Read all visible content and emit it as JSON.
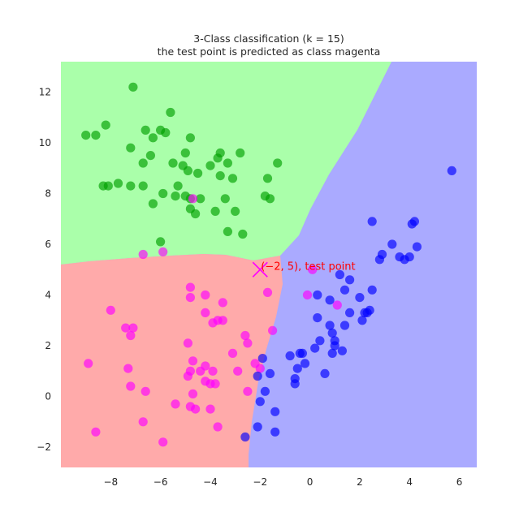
{
  "chart_data": {
    "type": "scatter",
    "title": "3-Class classification (k = 15)",
    "subtitle": "the test point is predicted as class magenta",
    "xlim": [
      -10.0,
      6.7
    ],
    "ylim": [
      -2.8,
      13.2
    ],
    "xticks": [
      -8,
      -6,
      -4,
      -2,
      0,
      2,
      4,
      6
    ],
    "yticks": [
      -2,
      0,
      2,
      4,
      6,
      8,
      10,
      12
    ],
    "xtick_labels": [
      "−8",
      "−6",
      "−4",
      "−2",
      "0",
      "2",
      "4",
      "6"
    ],
    "ytick_labels": [
      "−2",
      "0",
      "2",
      "4",
      "6",
      "8",
      "10",
      "12"
    ],
    "grid": false,
    "background_regions": [
      {
        "class": "green",
        "color": "#aaffaa"
      },
      {
        "class": "red",
        "color": "#ffaaaa"
      },
      {
        "class": "blue",
        "color": "#aaaaff"
      }
    ],
    "series": [
      {
        "color": "#00a000",
        "points": [
          [
            -7.1,
            12.2
          ],
          [
            -5.6,
            11.2
          ],
          [
            -8.2,
            10.7
          ],
          [
            -9.0,
            10.3
          ],
          [
            -8.6,
            10.3
          ],
          [
            -6.6,
            10.5
          ],
          [
            -6.0,
            10.5
          ],
          [
            -5.8,
            10.4
          ],
          [
            -6.3,
            10.2
          ],
          [
            -4.8,
            10.2
          ],
          [
            -7.2,
            9.8
          ],
          [
            -6.4,
            9.5
          ],
          [
            -5.0,
            9.6
          ],
          [
            -3.6,
            9.6
          ],
          [
            -2.8,
            9.6
          ],
          [
            -3.7,
            9.4
          ],
          [
            -6.7,
            9.2
          ],
          [
            -5.5,
            9.2
          ],
          [
            -5.1,
            9.1
          ],
          [
            -4.9,
            8.9
          ],
          [
            -4.5,
            8.8
          ],
          [
            -4.0,
            9.1
          ],
          [
            -3.3,
            9.2
          ],
          [
            -1.3,
            9.2
          ],
          [
            -3.6,
            8.7
          ],
          [
            -1.7,
            8.6
          ],
          [
            -3.1,
            8.6
          ],
          [
            -8.3,
            8.3
          ],
          [
            -8.1,
            8.3
          ],
          [
            -7.7,
            8.4
          ],
          [
            -7.2,
            8.3
          ],
          [
            -6.7,
            8.3
          ],
          [
            -5.3,
            8.3
          ],
          [
            -5.9,
            8.0
          ],
          [
            -5.4,
            7.9
          ],
          [
            -5.0,
            7.9
          ],
          [
            -4.8,
            7.8
          ],
          [
            -4.4,
            7.8
          ],
          [
            -3.4,
            7.8
          ],
          [
            -1.8,
            7.9
          ],
          [
            -1.6,
            7.8
          ],
          [
            -6.3,
            7.6
          ],
          [
            -4.8,
            7.4
          ],
          [
            -3.8,
            7.3
          ],
          [
            -3.0,
            7.3
          ],
          [
            -4.6,
            7.2
          ],
          [
            -3.3,
            6.5
          ],
          [
            -2.7,
            6.4
          ],
          [
            -6.0,
            6.1
          ]
        ]
      },
      {
        "color": "#ff00ff",
        "points": [
          [
            -4.7,
            7.8
          ],
          [
            -6.7,
            5.6
          ],
          [
            -5.9,
            5.7
          ],
          [
            -4.8,
            4.3
          ],
          [
            -4.8,
            3.9
          ],
          [
            -4.2,
            4.0
          ],
          [
            -3.5,
            3.7
          ],
          [
            -4.2,
            3.3
          ],
          [
            -3.7,
            3.0
          ],
          [
            -3.5,
            3.0
          ],
          [
            -3.9,
            2.9
          ],
          [
            -8.0,
            3.4
          ],
          [
            -7.4,
            2.7
          ],
          [
            -7.1,
            2.7
          ],
          [
            -7.2,
            2.4
          ],
          [
            -4.9,
            2.1
          ],
          [
            -2.6,
            2.4
          ],
          [
            -2.5,
            2.1
          ],
          [
            -3.1,
            1.7
          ],
          [
            -4.7,
            1.4
          ],
          [
            -2.2,
            1.3
          ],
          [
            -4.2,
            1.2
          ],
          [
            -2.0,
            1.1
          ],
          [
            -7.3,
            1.1
          ],
          [
            -4.4,
            1.0
          ],
          [
            -4.8,
            1.0
          ],
          [
            -4.9,
            0.8
          ],
          [
            -3.9,
            1.0
          ],
          [
            -2.9,
            1.0
          ],
          [
            -8.9,
            1.3
          ],
          [
            -7.2,
            0.4
          ],
          [
            -4.2,
            0.6
          ],
          [
            -4.0,
            0.5
          ],
          [
            -3.8,
            0.5
          ],
          [
            -6.6,
            0.2
          ],
          [
            -4.7,
            0.1
          ],
          [
            -2.5,
            0.2
          ],
          [
            -5.4,
            -0.3
          ],
          [
            -4.8,
            -0.4
          ],
          [
            -4.6,
            -0.5
          ],
          [
            -4.0,
            -0.5
          ],
          [
            -6.7,
            -1.0
          ],
          [
            -3.7,
            -1.2
          ],
          [
            -8.6,
            -1.4
          ],
          [
            -5.9,
            -1.8
          ],
          [
            -1.7,
            4.1
          ],
          [
            -1.5,
            2.6
          ],
          [
            0.1,
            5.0
          ],
          [
            -0.1,
            4.0
          ],
          [
            1.1,
            3.6
          ]
        ]
      },
      {
        "color": "#0000ff",
        "points": [
          [
            5.7,
            8.9
          ],
          [
            2.5,
            6.9
          ],
          [
            4.2,
            6.9
          ],
          [
            4.1,
            6.8
          ],
          [
            3.3,
            6.0
          ],
          [
            4.3,
            5.9
          ],
          [
            2.9,
            5.6
          ],
          [
            2.8,
            5.4
          ],
          [
            3.6,
            5.5
          ],
          [
            3.8,
            5.4
          ],
          [
            4.0,
            5.5
          ],
          [
            1.2,
            4.8
          ],
          [
            1.6,
            4.6
          ],
          [
            2.5,
            4.2
          ],
          [
            1.4,
            4.2
          ],
          [
            0.3,
            4.0
          ],
          [
            2.0,
            3.9
          ],
          [
            0.8,
            3.8
          ],
          [
            1.6,
            3.3
          ],
          [
            2.2,
            3.3
          ],
          [
            2.3,
            3.3
          ],
          [
            2.4,
            3.4
          ],
          [
            2.1,
            3.0
          ],
          [
            0.3,
            3.1
          ],
          [
            0.8,
            2.8
          ],
          [
            1.4,
            2.8
          ],
          [
            0.9,
            2.5
          ],
          [
            0.4,
            2.2
          ],
          [
            1.0,
            2.2
          ],
          [
            1.0,
            2.0
          ],
          [
            0.2,
            1.9
          ],
          [
            -0.3,
            1.7
          ],
          [
            -0.4,
            1.7
          ],
          [
            -0.8,
            1.6
          ],
          [
            -1.9,
            1.5
          ],
          [
            0.9,
            1.7
          ],
          [
            1.3,
            1.8
          ],
          [
            -0.5,
            1.1
          ],
          [
            -0.2,
            1.3
          ],
          [
            -0.6,
            0.7
          ],
          [
            0.6,
            0.9
          ],
          [
            -1.6,
            0.9
          ],
          [
            -2.1,
            0.8
          ],
          [
            -0.6,
            0.5
          ],
          [
            -1.8,
            0.2
          ],
          [
            -2.0,
            -0.2
          ],
          [
            -1.4,
            -0.6
          ],
          [
            -2.1,
            -1.2
          ],
          [
            -1.4,
            -1.4
          ],
          [
            -2.6,
            -1.6
          ]
        ]
      }
    ],
    "test_point": {
      "x": -2,
      "y": 5,
      "label": "(−2, 5), test point",
      "color": "#ff00ff",
      "label_color": "#ff0000"
    }
  }
}
